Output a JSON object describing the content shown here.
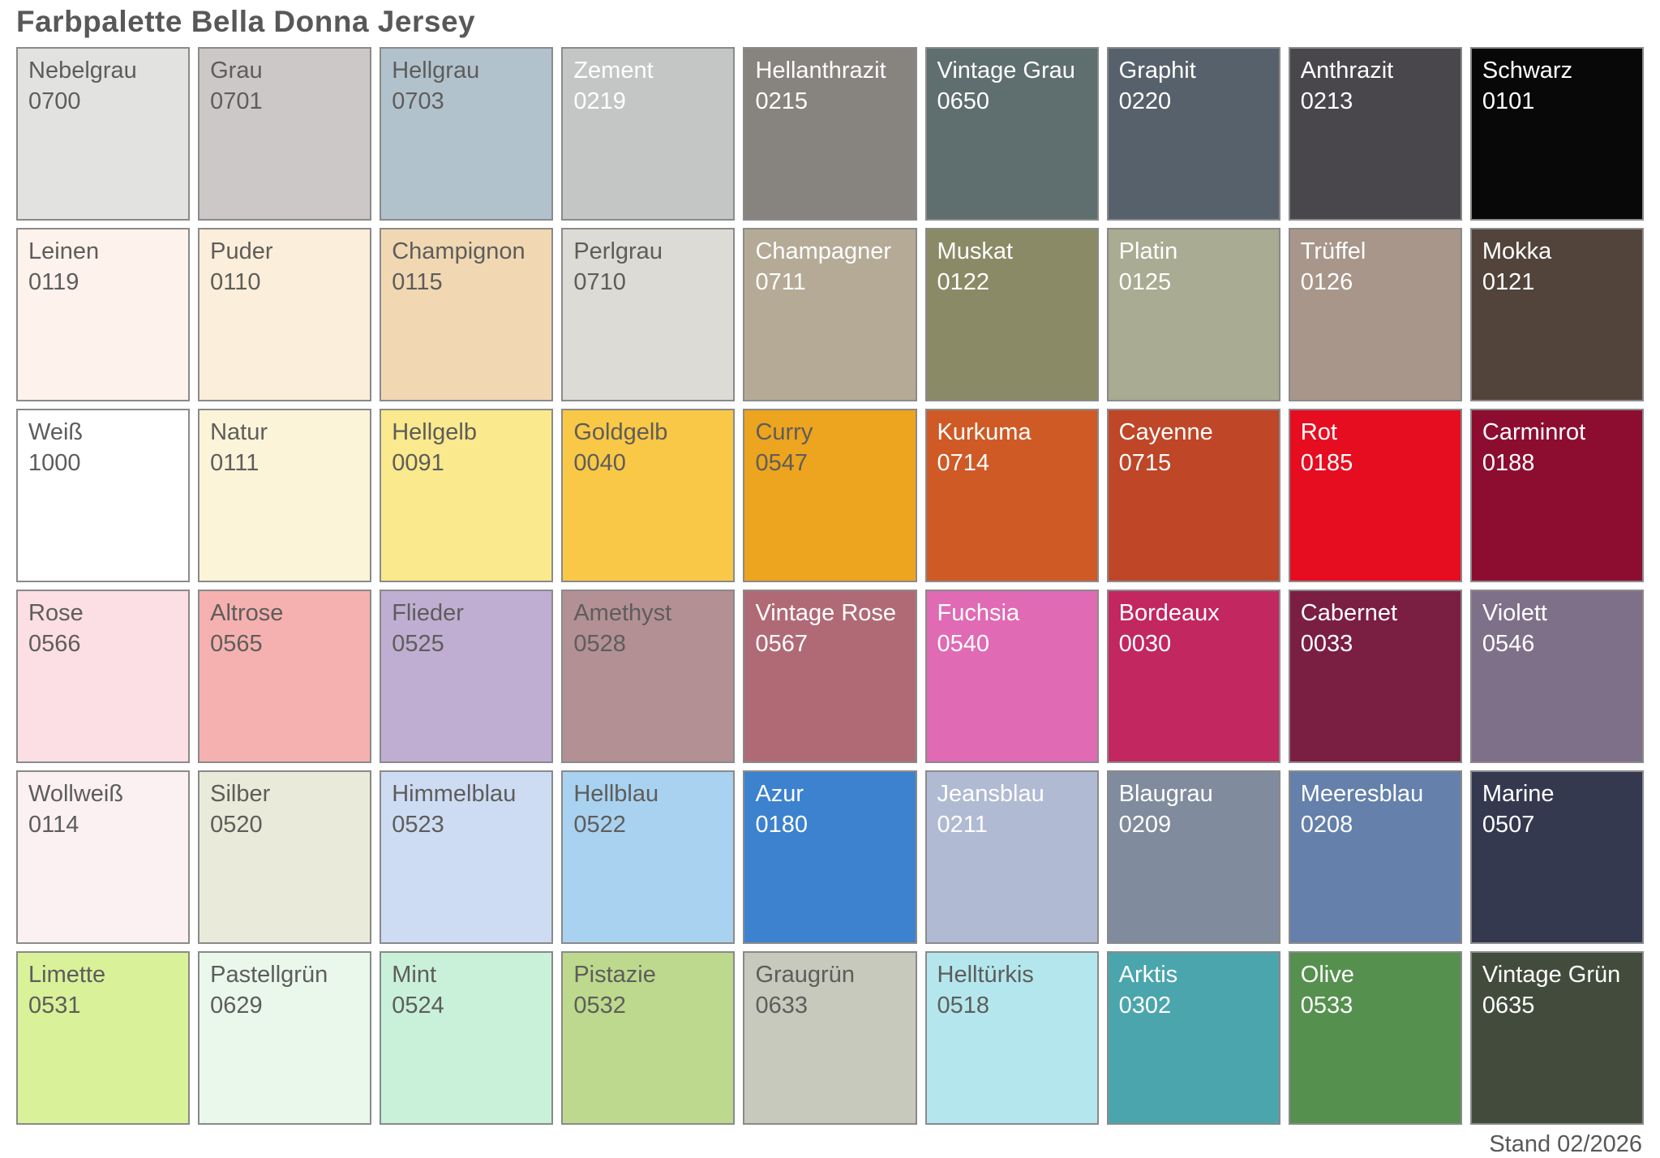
{
  "title": "Farbpalette Bella Donna Jersey",
  "footer": {
    "label": "Stand 02/2026"
  },
  "colors": {
    "background": "#ffffff",
    "title_text": "#585858",
    "swatch_border": "#8a8a8a",
    "dark_label": "#5e5d5b",
    "light_label": "#ffffff"
  },
  "palette": {
    "columns": 9,
    "rows": 6,
    "swatches": [
      {
        "name": "Nebelgrau",
        "code": "0700",
        "color": "#e2e2e0",
        "text": "dark"
      },
      {
        "name": "Grau",
        "code": "0701",
        "color": "#ccc8c7",
        "text": "dark"
      },
      {
        "name": "Hellgrau",
        "code": "0703",
        "color": "#b2c2cd",
        "text": "dark"
      },
      {
        "name": "Zement",
        "code": "0219",
        "color": "#c4c6c5",
        "text": "light"
      },
      {
        "name": "Hellanthrazit",
        "code": "0215",
        "color": "#87837f",
        "text": "light"
      },
      {
        "name": "Vintage Grau",
        "code": "0650",
        "color": "#5f6e6e",
        "text": "light"
      },
      {
        "name": "Graphit",
        "code": "0220",
        "color": "#57616b",
        "text": "light"
      },
      {
        "name": "Anthrazit",
        "code": "0213",
        "color": "#4a474c",
        "text": "light"
      },
      {
        "name": "Schwarz",
        "code": "0101",
        "color": "#080808",
        "text": "light"
      },
      {
        "name": "Leinen",
        "code": "0119",
        "color": "#fdf2ec",
        "text": "dark"
      },
      {
        "name": "Puder",
        "code": "0110",
        "color": "#fbeeda",
        "text": "dark"
      },
      {
        "name": "Champignon",
        "code": "0115",
        "color": "#f1d8b3",
        "text": "dark"
      },
      {
        "name": "Perlgrau",
        "code": "0710",
        "color": "#dcdbd5",
        "text": "dark"
      },
      {
        "name": "Champagner",
        "code": "0711",
        "color": "#b5aa96",
        "text": "light"
      },
      {
        "name": "Muskat",
        "code": "0122",
        "color": "#8a8a66",
        "text": "light"
      },
      {
        "name": "Platin",
        "code": "0125",
        "color": "#a9ab92",
        "text": "light"
      },
      {
        "name": "Trüffel",
        "code": "0126",
        "color": "#a8968a",
        "text": "light"
      },
      {
        "name": "Mokka",
        "code": "0121",
        "color": "#52443b",
        "text": "light"
      },
      {
        "name": "Weiß",
        "code": "1000",
        "color": "#ffffff",
        "text": "dark"
      },
      {
        "name": "Natur",
        "code": "0111",
        "color": "#fcf4d9",
        "text": "dark"
      },
      {
        "name": "Hellgelb",
        "code": "0091",
        "color": "#fae98d",
        "text": "dark"
      },
      {
        "name": "Goldgelb",
        "code": "0040",
        "color": "#f9c846",
        "text": "dark"
      },
      {
        "name": "Curry",
        "code": "0547",
        "color": "#eda41e",
        "text": "dark"
      },
      {
        "name": "Kurkuma",
        "code": "0714",
        "color": "#cf5a26",
        "text": "light"
      },
      {
        "name": "Cayenne",
        "code": "0715",
        "color": "#bf4627",
        "text": "light"
      },
      {
        "name": "Rot",
        "code": "0185",
        "color": "#e60d21",
        "text": "light"
      },
      {
        "name": "Carminrot",
        "code": "0188",
        "color": "#8d0d31",
        "text": "light"
      },
      {
        "name": "Rose",
        "code": "0566",
        "color": "#fcdee5",
        "text": "dark"
      },
      {
        "name": "Altrose",
        "code": "0565",
        "color": "#f5b1b0",
        "text": "dark"
      },
      {
        "name": "Flieder",
        "code": "0525",
        "color": "#c0aed2",
        "text": "dark"
      },
      {
        "name": "Amethyst",
        "code": "0528",
        "color": "#b39094",
        "text": "dark"
      },
      {
        "name": "Vintage Rose",
        "code": "0567",
        "color": "#b06a76",
        "text": "light"
      },
      {
        "name": "Fuchsia",
        "code": "0540",
        "color": "#e06ab4",
        "text": "light"
      },
      {
        "name": "Bordeaux",
        "code": "0030",
        "color": "#c2275f",
        "text": "light"
      },
      {
        "name": "Cabernet",
        "code": "0033",
        "color": "#7a1e42",
        "text": "light"
      },
      {
        "name": "Violett",
        "code": "0546",
        "color": "#7f7089",
        "text": "light"
      },
      {
        "name": "Wollweiß",
        "code": "0114",
        "color": "#fbf1f3",
        "text": "dark"
      },
      {
        "name": "Silber",
        "code": "0520",
        "color": "#e9ead9",
        "text": "dark"
      },
      {
        "name": "Himmelblau",
        "code": "0523",
        "color": "#cddcf3",
        "text": "dark"
      },
      {
        "name": "Hellblau",
        "code": "0522",
        "color": "#a9d2f0",
        "text": "dark"
      },
      {
        "name": "Azur",
        "code": "0180",
        "color": "#3c82ce",
        "text": "light"
      },
      {
        "name": "Jeansblau",
        "code": "0211",
        "color": "#b1bad3",
        "text": "light"
      },
      {
        "name": "Blaugrau",
        "code": "0209",
        "color": "#818b9e",
        "text": "light"
      },
      {
        "name": "Meeresblau",
        "code": "0208",
        "color": "#6480ab",
        "text": "light"
      },
      {
        "name": "Marine",
        "code": "0507",
        "color": "#343950",
        "text": "light"
      },
      {
        "name": "Limette",
        "code": "0531",
        "color": "#d9f199",
        "text": "dark"
      },
      {
        "name": "Pastellgrün",
        "code": "0629",
        "color": "#e9f8eb",
        "text": "dark"
      },
      {
        "name": "Mint",
        "code": "0524",
        "color": "#c9f1d9",
        "text": "dark"
      },
      {
        "name": "Pistazie",
        "code": "0532",
        "color": "#bdd98d",
        "text": "dark"
      },
      {
        "name": "Graugrün",
        "code": "0633",
        "color": "#c6c9bb",
        "text": "dark"
      },
      {
        "name": "Helltürkis",
        "code": "0518",
        "color": "#b3e7ed",
        "text": "dark"
      },
      {
        "name": "Arktis",
        "code": "0302",
        "color": "#4ba5ad",
        "text": "light"
      },
      {
        "name": "Olive",
        "code": "0533",
        "color": "#55904f",
        "text": "light"
      },
      {
        "name": "Vintage Grün",
        "code": "0635",
        "color": "#434c3c",
        "text": "light"
      }
    ]
  }
}
